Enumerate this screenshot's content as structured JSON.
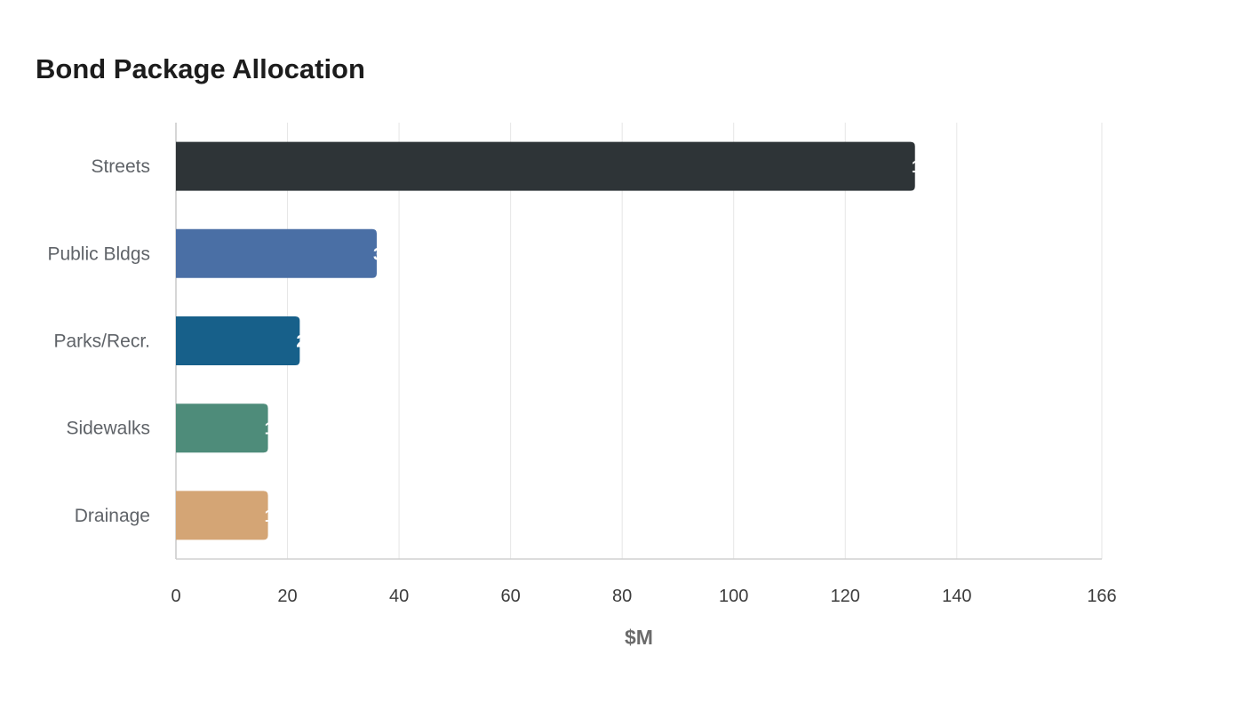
{
  "chart_data": {
    "type": "bar",
    "orientation": "horizontal",
    "title": "Bond Package Allocation",
    "xlabel": "$M",
    "ylabel": "",
    "categories": [
      "Streets",
      "Public Bldgs",
      "Parks/Recr.",
      "Sidewalks",
      "Drainage"
    ],
    "values": [
      132.5,
      36,
      22.2,
      16.5,
      16.5
    ],
    "colors": [
      "#2e3437",
      "#4a6fa5",
      "#17608a",
      "#4e8c7a",
      "#d4a575"
    ],
    "xlim": [
      0,
      166
    ],
    "xticks": [
      0,
      20,
      40,
      60,
      80,
      100,
      120,
      140,
      166
    ],
    "grid": true,
    "legend": "none"
  }
}
